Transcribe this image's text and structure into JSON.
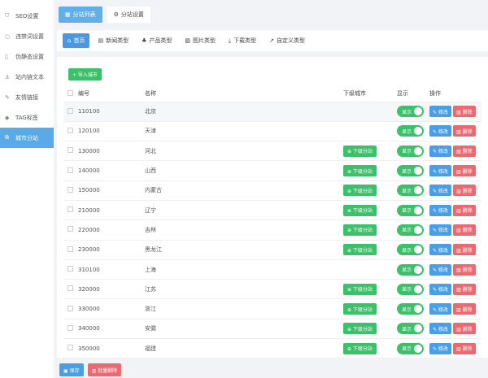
{
  "sidebar": {
    "items": [
      {
        "label": "SEO设置",
        "icon": "shield-icon",
        "glyph": "⛉"
      },
      {
        "label": "违禁词设置",
        "icon": "circle-icon",
        "glyph": "○"
      },
      {
        "label": "伪静态设置",
        "icon": "file-icon",
        "glyph": "▯"
      },
      {
        "label": "站内链文本",
        "icon": "anchor-icon",
        "glyph": "⚓"
      },
      {
        "label": "友情链接",
        "icon": "link-icon",
        "glyph": "✎"
      },
      {
        "label": "TAG标签",
        "icon": "tag-icon",
        "glyph": "◆"
      },
      {
        "label": "城市分站",
        "icon": "city-icon",
        "glyph": "⧉",
        "active": true
      }
    ]
  },
  "tabs": [
    {
      "label": "分站列表",
      "glyph": "▦"
    },
    {
      "label": "分站设置",
      "glyph": "⚙"
    }
  ],
  "subtabs": [
    {
      "label": "首页",
      "glyph": "⌂"
    },
    {
      "label": "新闻类型",
      "glyph": "▤"
    },
    {
      "label": "产品类型",
      "glyph": "♣"
    },
    {
      "label": "图片类型",
      "glyph": "▨"
    },
    {
      "label": "下载类型",
      "glyph": "⤓"
    },
    {
      "label": "自定义类型",
      "glyph": "↗"
    }
  ],
  "import_label": "+ 导入城市",
  "columns": [
    "编号",
    "名称",
    "下级城市",
    "显示",
    "操作"
  ],
  "sub_label": "⊕ 下级分站",
  "toggle_label": "显示",
  "edit_label": "✎ 修改",
  "delete_label": "▥ 删除",
  "rows": [
    {
      "id": "110100",
      "name": "北京",
      "sub": false
    },
    {
      "id": "120100",
      "name": "天津",
      "sub": false
    },
    {
      "id": "130000",
      "name": "河北",
      "sub": true
    },
    {
      "id": "140000",
      "name": "山西",
      "sub": true
    },
    {
      "id": "150000",
      "name": "内蒙古",
      "sub": true
    },
    {
      "id": "210000",
      "name": "辽宁",
      "sub": true
    },
    {
      "id": "220000",
      "name": "吉林",
      "sub": true
    },
    {
      "id": "230000",
      "name": "黑龙江",
      "sub": true
    },
    {
      "id": "310100",
      "name": "上海",
      "sub": false
    },
    {
      "id": "320000",
      "name": "江苏",
      "sub": true
    },
    {
      "id": "330000",
      "name": "浙江",
      "sub": true
    },
    {
      "id": "340000",
      "name": "安徽",
      "sub": true
    },
    {
      "id": "350000",
      "name": "福建",
      "sub": true
    }
  ],
  "footer": {
    "save": "▣ 保存",
    "batch_delete": "▥ 批量删除"
  }
}
